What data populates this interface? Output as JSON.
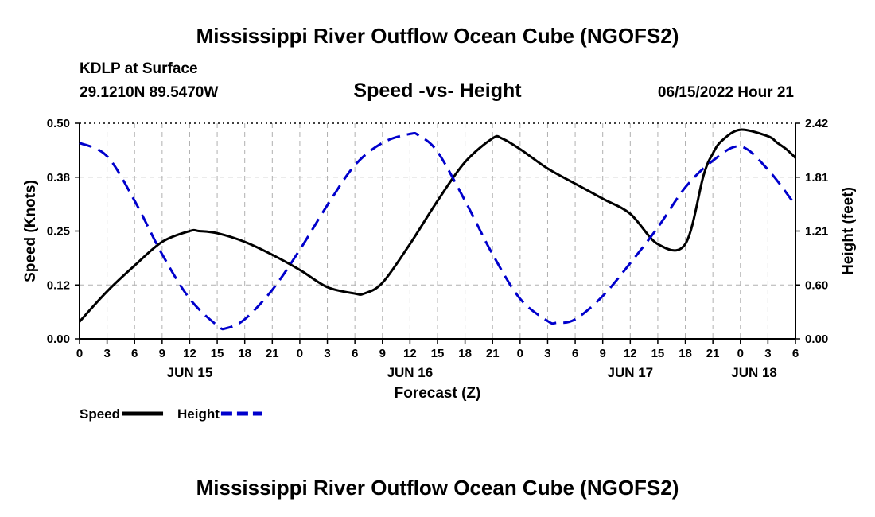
{
  "header": {
    "title": "Mississippi River Outflow Ocean Cube (NGOFS2)",
    "station": "KDLP at Surface",
    "coords": "29.1210N  89.5470W",
    "subtitle": "Speed -vs- Height",
    "datetime": "06/15/2022 Hour 21"
  },
  "footer": {
    "title": "Mississippi River Outflow Ocean Cube (NGOFS2)"
  },
  "chart_data": {
    "type": "line",
    "title": "Speed -vs- Height",
    "xlabel": "Forecast (Z)",
    "ylabel": "Speed (Knots)",
    "y2label": "Height (feet)",
    "x_range": [
      0,
      78
    ],
    "ylim": [
      0,
      0.5
    ],
    "y2lim": [
      0,
      2.42
    ],
    "x_tick_labels": [
      "0",
      "3",
      "6",
      "9",
      "12",
      "15",
      "18",
      "21",
      "0",
      "3",
      "6",
      "9",
      "12",
      "15",
      "18",
      "21",
      "0",
      "3",
      "6",
      "9",
      "12",
      "15",
      "18",
      "21",
      "0",
      "3",
      "6"
    ],
    "y_tick_values": [
      0,
      0.125,
      0.25,
      0.375,
      0.5
    ],
    "y_tick_labels": [
      "0.00",
      "0.12",
      "0.25",
      "0.38",
      "0.50"
    ],
    "y2_tick_values": [
      0,
      0.605,
      1.21,
      1.815,
      2.42
    ],
    "y2_tick_labels": [
      "0.00",
      "0.60",
      "1.21",
      "1.81",
      "2.42"
    ],
    "day_labels": [
      {
        "label": "JUN 15",
        "hour": 12
      },
      {
        "label": "JUN 16",
        "hour": 36
      },
      {
        "label": "JUN 17",
        "hour": 60
      },
      {
        "label": "JUN 18",
        "hour": 73.5
      }
    ],
    "grid": true,
    "legend_position": "bottom-left",
    "series": [
      {
        "name": "Speed",
        "axis": "left",
        "color": "#000000",
        "style": "solid",
        "x": [
          0,
          3,
          6,
          9,
          12,
          13,
          15,
          18,
          21,
          24,
          27,
          30,
          31,
          33,
          36,
          39,
          42,
          45,
          46,
          48,
          51,
          54,
          57,
          60,
          63,
          66,
          68,
          69,
          70,
          72,
          75,
          76,
          77,
          78
        ],
        "y": [
          0.04,
          0.11,
          0.17,
          0.225,
          0.25,
          0.25,
          0.245,
          0.225,
          0.195,
          0.16,
          0.12,
          0.105,
          0.105,
          0.13,
          0.22,
          0.32,
          0.41,
          0.465,
          0.465,
          0.44,
          0.395,
          0.36,
          0.325,
          0.29,
          0.22,
          0.22,
          0.38,
          0.43,
          0.46,
          0.485,
          0.47,
          0.455,
          0.44,
          0.42
        ]
      },
      {
        "name": "Height",
        "axis": "right",
        "color": "#0000cc",
        "style": "dashed",
        "x": [
          0,
          3,
          6,
          9,
          12,
          15,
          16,
          18,
          21,
          24,
          27,
          30,
          33,
          36,
          37,
          39,
          42,
          45,
          48,
          51,
          52,
          54,
          57,
          60,
          63,
          66,
          69,
          72,
          75,
          78
        ],
        "y": [
          2.2,
          2.05,
          1.55,
          0.95,
          0.45,
          0.15,
          0.12,
          0.22,
          0.55,
          1.0,
          1.5,
          1.95,
          2.2,
          2.3,
          2.28,
          2.1,
          1.55,
          0.95,
          0.45,
          0.2,
          0.18,
          0.22,
          0.48,
          0.85,
          1.25,
          1.7,
          2.0,
          2.16,
          1.9,
          1.5
        ]
      }
    ]
  }
}
